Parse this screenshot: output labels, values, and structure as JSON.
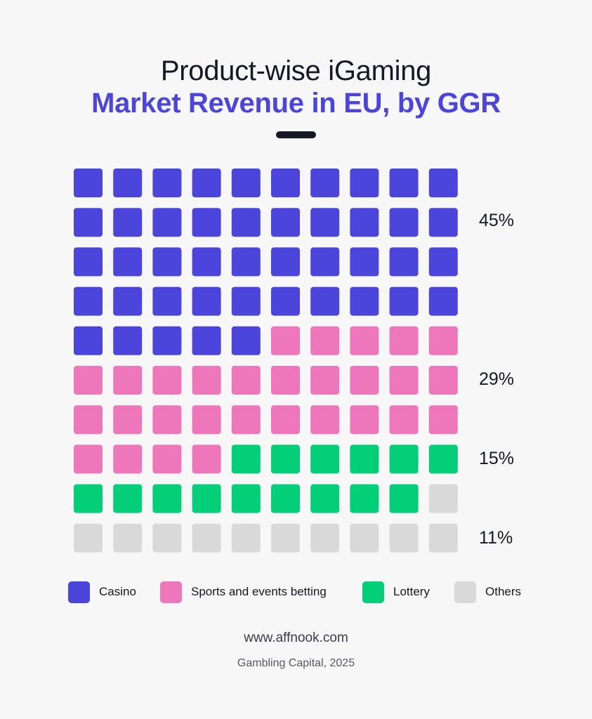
{
  "title": {
    "line1": "Product-wise iGaming",
    "line2": "Market Revenue in EU, by GGR"
  },
  "chart_data": {
    "type": "waffle",
    "units_total": 100,
    "grid": {
      "rows": 10,
      "cols": 10
    },
    "categories": [
      "Casino",
      "Sports and events betting",
      "Lottery",
      "Others"
    ],
    "units": [
      45,
      29,
      15,
      11
    ],
    "labels": [
      "45%",
      "29%",
      "15%",
      "11%"
    ],
    "colors": [
      "#4c45dc",
      "#ee77bb",
      "#03cf79",
      "#d9d9d9"
    ]
  },
  "legend": [
    {
      "label": "Casino",
      "color": "#4c45dc"
    },
    {
      "label": "Sports and events betting",
      "color": "#ee77bb"
    },
    {
      "label": "Lottery",
      "color": "#03cf79"
    },
    {
      "label": "Others",
      "color": "#d9d9d9"
    }
  ],
  "footer": {
    "site": "www.affnook.com",
    "source": "Gambling Capital, 2025"
  }
}
